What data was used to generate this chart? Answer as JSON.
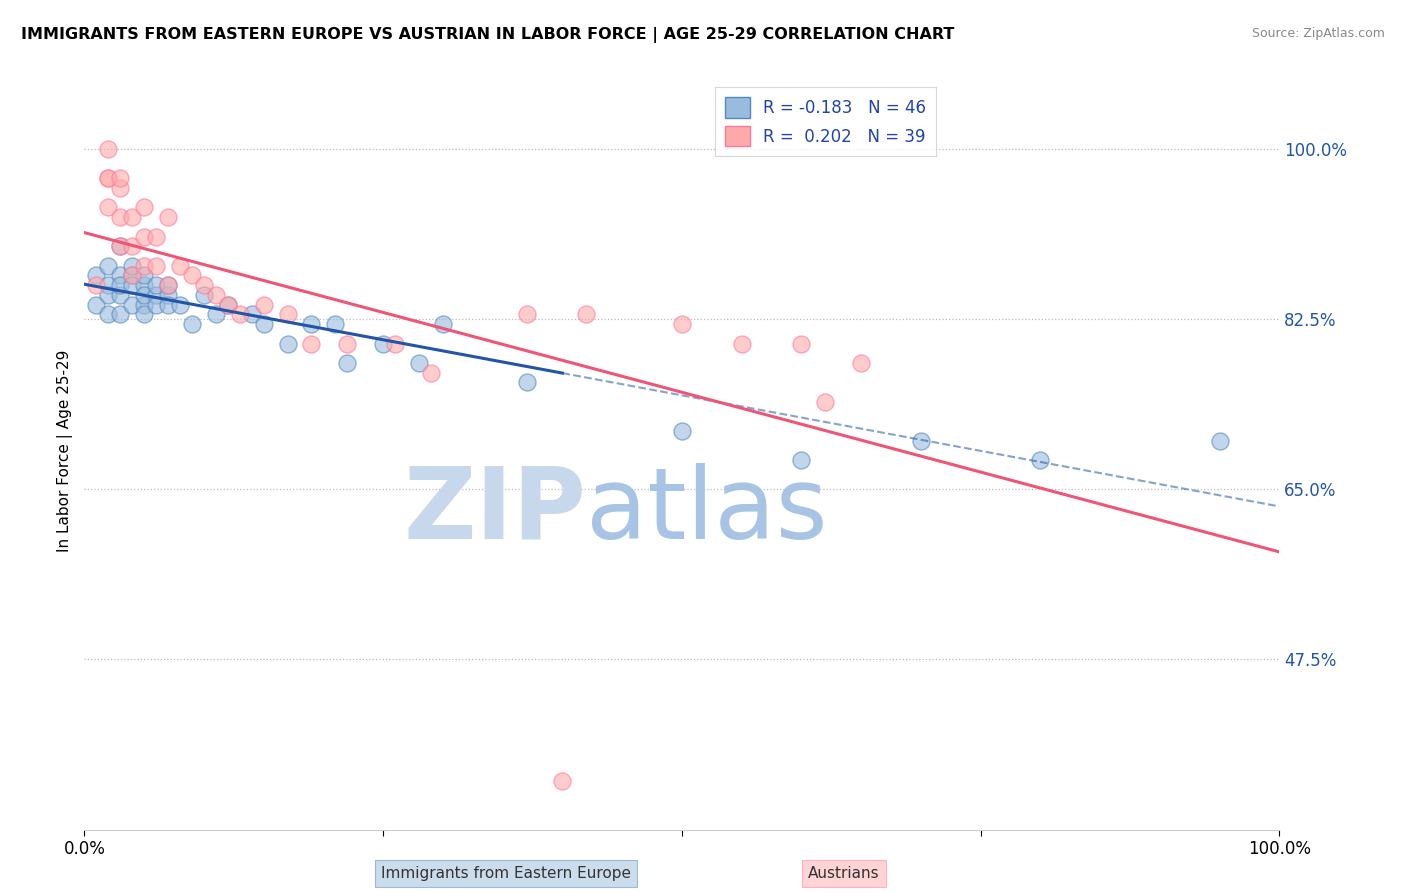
{
  "title": "IMMIGRANTS FROM EASTERN EUROPE VS AUSTRIAN IN LABOR FORCE | AGE 25-29 CORRELATION CHART",
  "source": "Source: ZipAtlas.com",
  "ylabel": "In Labor Force | Age 25-29",
  "xlim": [
    0.0,
    1.0
  ],
  "ylim": [
    0.3,
    1.08
  ],
  "yticks": [
    0.475,
    0.65,
    0.825,
    1.0
  ],
  "ytick_labels": [
    "47.5%",
    "65.0%",
    "82.5%",
    "100.0%"
  ],
  "xticks": [
    0.0,
    0.25,
    0.5,
    0.75,
    1.0
  ],
  "xtick_labels": [
    "0.0%",
    "",
    "",
    "",
    "100.0%"
  ],
  "blue_R": -0.183,
  "blue_N": 46,
  "pink_R": 0.202,
  "pink_N": 39,
  "blue_label": "Immigrants from Eastern Europe",
  "pink_label": "Austrians",
  "blue_color": "#99BBDD",
  "pink_color": "#FFAAAA",
  "blue_edge_color": "#5588BB",
  "pink_edge_color": "#FF7799",
  "blue_trend_color": "#2255AA",
  "pink_trend_color": "#EE5577",
  "background_color": "#ffffff",
  "blue_x": [
    0.01,
    0.01,
    0.02,
    0.02,
    0.02,
    0.02,
    0.03,
    0.03,
    0.03,
    0.03,
    0.03,
    0.04,
    0.04,
    0.04,
    0.04,
    0.05,
    0.05,
    0.05,
    0.05,
    0.05,
    0.06,
    0.06,
    0.06,
    0.07,
    0.07,
    0.07,
    0.08,
    0.09,
    0.1,
    0.11,
    0.12,
    0.14,
    0.15,
    0.17,
    0.19,
    0.21,
    0.22,
    0.25,
    0.28,
    0.3,
    0.37,
    0.5,
    0.6,
    0.7,
    0.8,
    0.95
  ],
  "blue_y": [
    0.87,
    0.84,
    0.88,
    0.86,
    0.83,
    0.85,
    0.9,
    0.87,
    0.85,
    0.83,
    0.86,
    0.87,
    0.84,
    0.86,
    0.88,
    0.86,
    0.84,
    0.85,
    0.83,
    0.87,
    0.85,
    0.84,
    0.86,
    0.85,
    0.84,
    0.86,
    0.84,
    0.82,
    0.85,
    0.83,
    0.84,
    0.83,
    0.82,
    0.8,
    0.82,
    0.82,
    0.78,
    0.8,
    0.78,
    0.82,
    0.76,
    0.71,
    0.68,
    0.7,
    0.68,
    0.7
  ],
  "pink_x": [
    0.01,
    0.02,
    0.02,
    0.02,
    0.02,
    0.03,
    0.03,
    0.03,
    0.03,
    0.04,
    0.04,
    0.04,
    0.05,
    0.05,
    0.05,
    0.06,
    0.06,
    0.07,
    0.07,
    0.08,
    0.09,
    0.1,
    0.11,
    0.12,
    0.13,
    0.15,
    0.17,
    0.19,
    0.22,
    0.26,
    0.29,
    0.37,
    0.42,
    0.5,
    0.55,
    0.6,
    0.62,
    0.65,
    0.4
  ],
  "pink_y": [
    0.86,
    1.0,
    0.97,
    0.94,
    0.97,
    0.96,
    0.93,
    0.9,
    0.97,
    0.93,
    0.9,
    0.87,
    0.94,
    0.91,
    0.88,
    0.91,
    0.88,
    0.93,
    0.86,
    0.88,
    0.87,
    0.86,
    0.85,
    0.84,
    0.83,
    0.84,
    0.83,
    0.8,
    0.8,
    0.8,
    0.77,
    0.83,
    0.83,
    0.82,
    0.8,
    0.8,
    0.74,
    0.78,
    0.35
  ]
}
